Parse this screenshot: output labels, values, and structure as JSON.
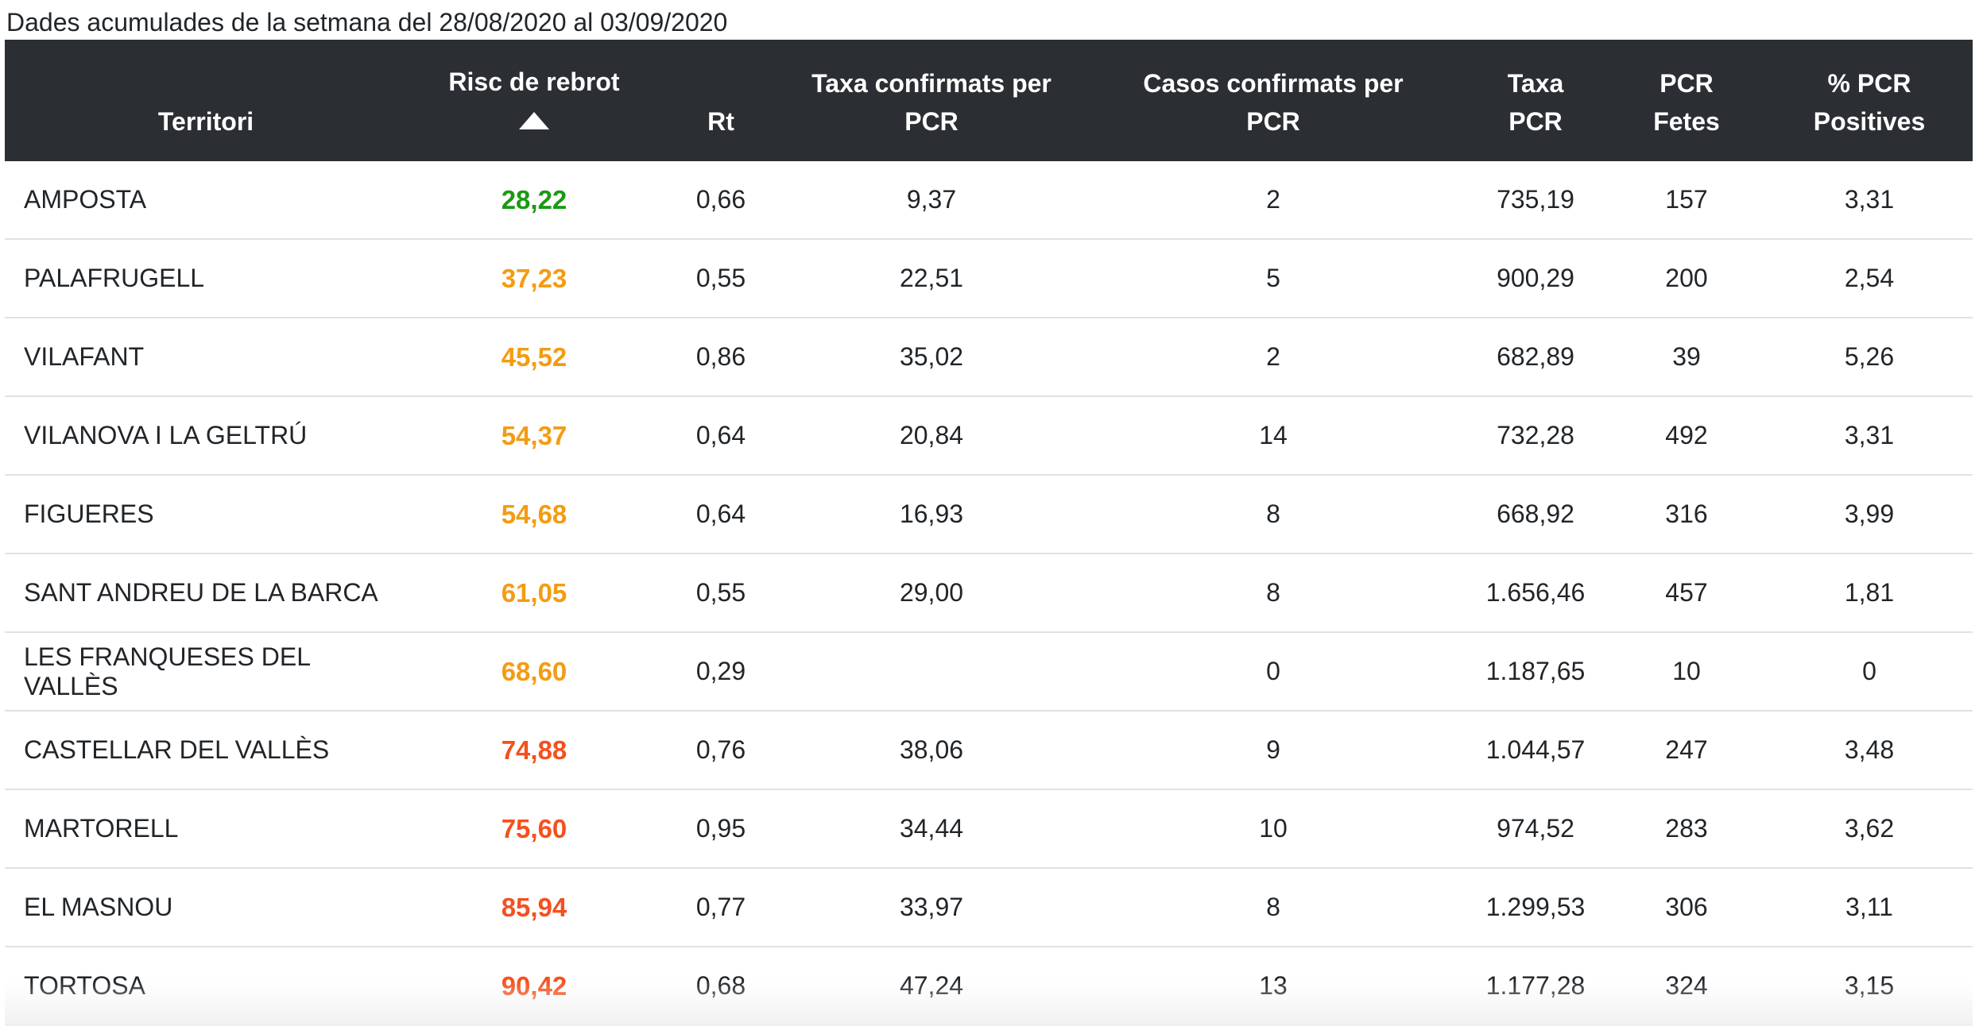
{
  "caption": "Dades acumulades de la setmana del 28/08/2020 al 03/09/2020",
  "colors": {
    "header_bg": "#2b2f33",
    "green": "#1a9a12",
    "orange": "#f39c12",
    "red_orange": "#f4511e"
  },
  "header": {
    "territori": "Territori",
    "risc_line1": "Risc de rebrot",
    "rt": "Rt",
    "taxa_conf_line1": "Taxa confirmats per",
    "taxa_conf_line2": "PCR",
    "casos_line1": "Casos confirmats per",
    "casos_line2": "PCR",
    "taxa_pcr_line1": "Taxa",
    "taxa_pcr_line2": "PCR",
    "pcr_fetes_line1": "PCR",
    "pcr_fetes_line2": "Fetes",
    "pct_line1": "% PCR",
    "pct_line2": "Positives"
  },
  "rows": [
    {
      "territori": "AMPOSTA",
      "risc": "28,22",
      "risc_color": "#1a9a12",
      "rt": "0,66",
      "taxa_conf": "9,37",
      "casos": "2",
      "taxa_pcr": "735,19",
      "pcr_fetes": "157",
      "pct": "3,31"
    },
    {
      "territori": "PALAFRUGELL",
      "risc": "37,23",
      "risc_color": "#f39c12",
      "rt": "0,55",
      "taxa_conf": "22,51",
      "casos": "5",
      "taxa_pcr": "900,29",
      "pcr_fetes": "200",
      "pct": "2,54"
    },
    {
      "territori": "VILAFANT",
      "risc": "45,52",
      "risc_color": "#f39c12",
      "rt": "0,86",
      "taxa_conf": "35,02",
      "casos": "2",
      "taxa_pcr": "682,89",
      "pcr_fetes": "39",
      "pct": "5,26"
    },
    {
      "territori": "VILANOVA I LA GELTRÚ",
      "risc": "54,37",
      "risc_color": "#f39c12",
      "rt": "0,64",
      "taxa_conf": "20,84",
      "casos": "14",
      "taxa_pcr": "732,28",
      "pcr_fetes": "492",
      "pct": "3,31"
    },
    {
      "territori": "FIGUERES",
      "risc": "54,68",
      "risc_color": "#f39c12",
      "rt": "0,64",
      "taxa_conf": "16,93",
      "casos": "8",
      "taxa_pcr": "668,92",
      "pcr_fetes": "316",
      "pct": "3,99"
    },
    {
      "territori": "SANT ANDREU DE LA BARCA",
      "risc": "61,05",
      "risc_color": "#f39c12",
      "rt": "0,55",
      "taxa_conf": "29,00",
      "casos": "8",
      "taxa_pcr": "1.656,46",
      "pcr_fetes": "457",
      "pct": "1,81"
    },
    {
      "territori": "LES FRANQUESES DEL VALLÈS",
      "risc": "68,60",
      "risc_color": "#f39c12",
      "rt": "0,29",
      "taxa_conf": "",
      "casos": "0",
      "taxa_pcr": "1.187,65",
      "pcr_fetes": "10",
      "pct": "0"
    },
    {
      "territori": "CASTELLAR DEL VALLÈS",
      "risc": "74,88",
      "risc_color": "#f4511e",
      "rt": "0,76",
      "taxa_conf": "38,06",
      "casos": "9",
      "taxa_pcr": "1.044,57",
      "pcr_fetes": "247",
      "pct": "3,48"
    },
    {
      "territori": "MARTORELL",
      "risc": "75,60",
      "risc_color": "#f4511e",
      "rt": "0,95",
      "taxa_conf": "34,44",
      "casos": "10",
      "taxa_pcr": "974,52",
      "pcr_fetes": "283",
      "pct": "3,62"
    },
    {
      "territori": "EL MASNOU",
      "risc": "85,94",
      "risc_color": "#f4511e",
      "rt": "0,77",
      "taxa_conf": "33,97",
      "casos": "8",
      "taxa_pcr": "1.299,53",
      "pcr_fetes": "306",
      "pct": "3,11"
    },
    {
      "territori": "TORTOSA",
      "risc": "90,42",
      "risc_color": "#f4511e",
      "rt": "0,68",
      "taxa_conf": "47,24",
      "casos": "13",
      "taxa_pcr": "1.177,28",
      "pcr_fetes": "324",
      "pct": "3,15"
    }
  ]
}
